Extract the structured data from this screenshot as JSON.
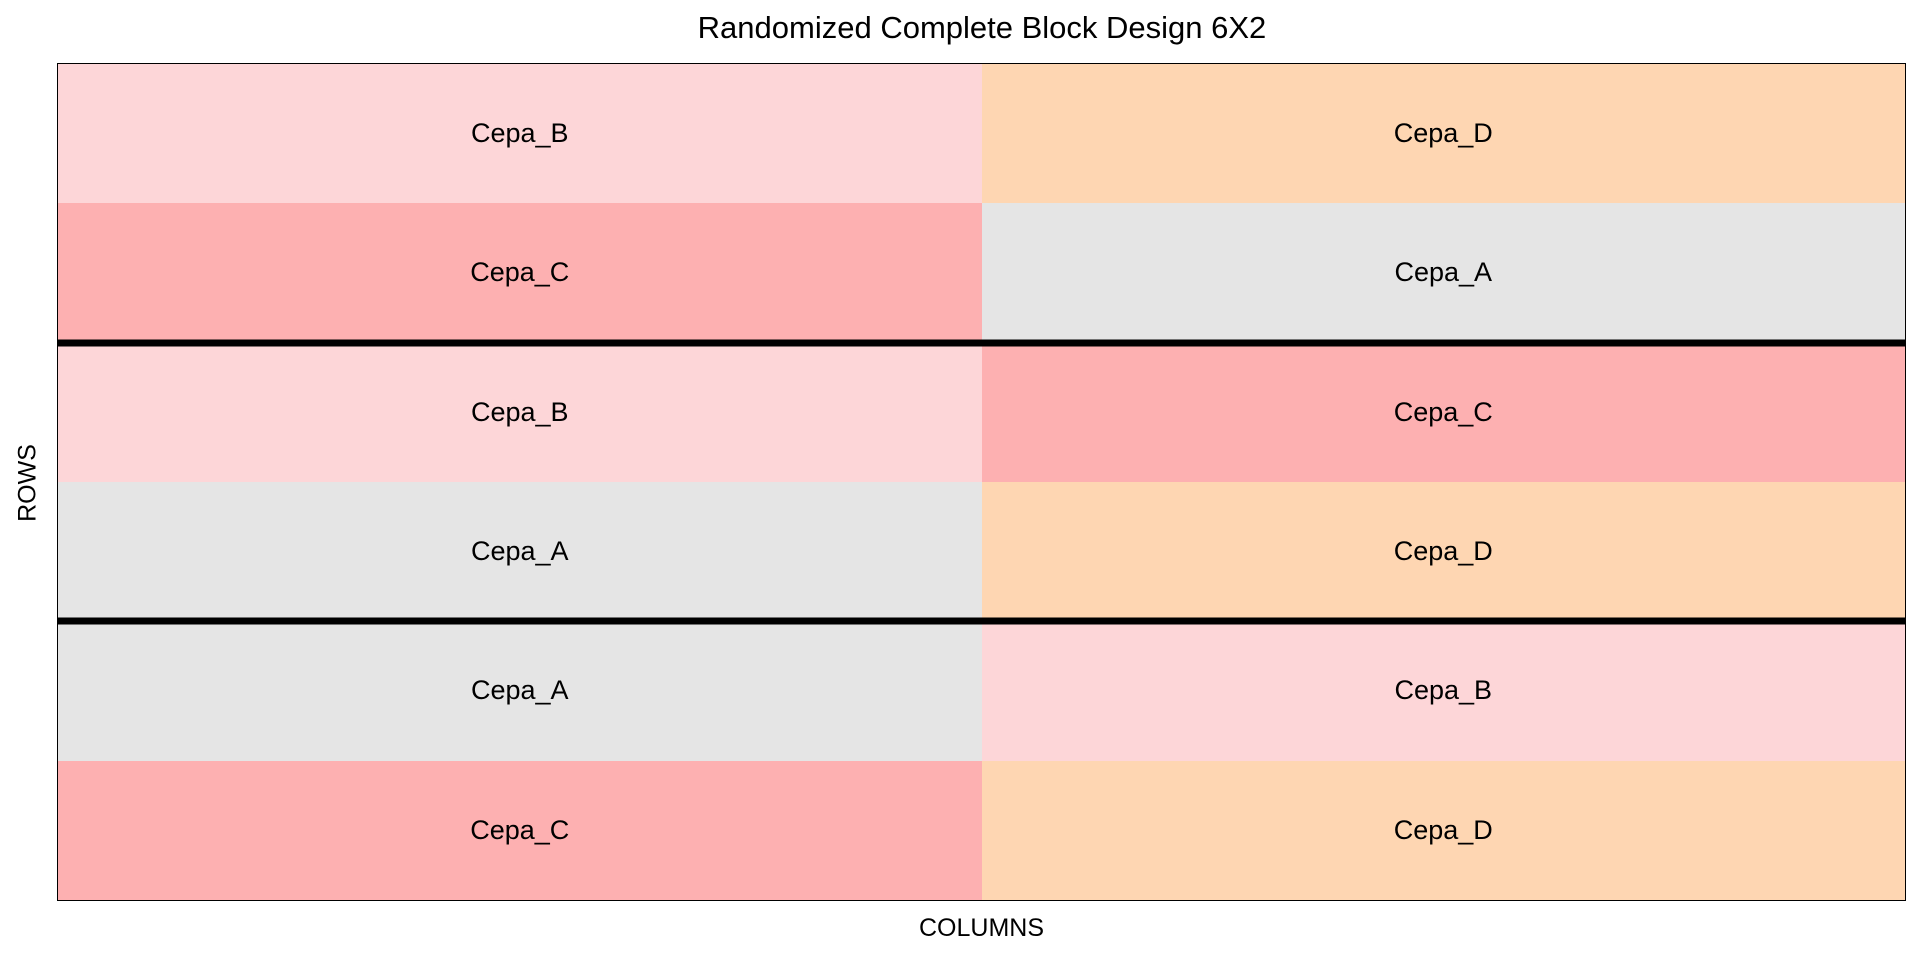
{
  "title": "Randomized Complete Block Design 6X2",
  "x_axis_label": "COLUMNS",
  "y_axis_label": "ROWS",
  "treatment_colors": {
    "Cepa_A": "#e5e5e5",
    "Cepa_B": "#fdd6d8",
    "Cepa_C": "#fdb0b1",
    "Cepa_D": "#fed6b2"
  },
  "layout": {
    "columns": 2,
    "rows": 6,
    "block_boundaries_after_row": [
      2,
      4
    ]
  },
  "rows": [
    [
      "Cepa_B",
      "Cepa_D"
    ],
    [
      "Cepa_C",
      "Cepa_A"
    ],
    [
      "Cepa_B",
      "Cepa_C"
    ],
    [
      "Cepa_A",
      "Cepa_D"
    ],
    [
      "Cepa_A",
      "Cepa_B"
    ],
    [
      "Cepa_C",
      "Cepa_D"
    ]
  ]
}
